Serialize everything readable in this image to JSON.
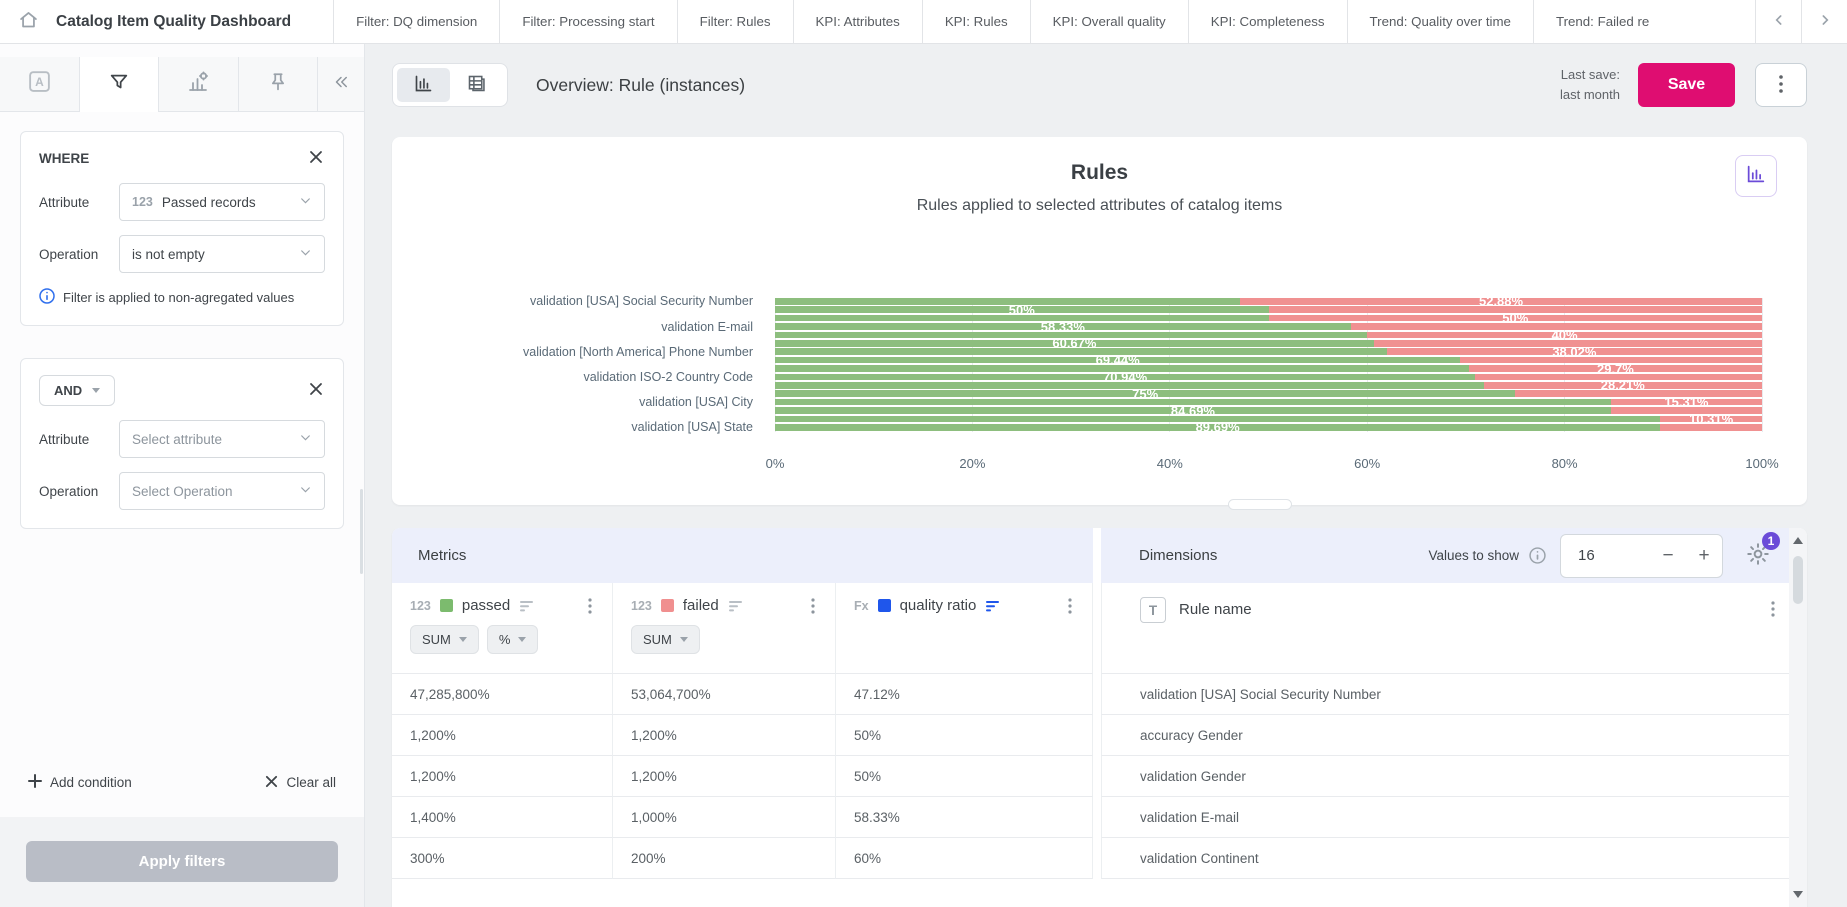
{
  "topbar": {
    "title": "Catalog Item Quality Dashboard",
    "tabs": [
      "Filter: DQ dimension",
      "Filter: Processing start",
      "Filter: Rules",
      "KPI: Attributes",
      "KPI: Rules",
      "KPI: Overall quality",
      "KPI: Completeness",
      "Trend: Quality over time",
      "Trend: Failed re"
    ]
  },
  "sidebar": {
    "active_tool": "filter-tool",
    "where_card": {
      "title": "WHERE",
      "attribute_label": "Attribute",
      "attribute_type": "123",
      "attribute_value": "Passed records",
      "operation_label": "Operation",
      "operation_value": "is not empty",
      "info": "Filter is applied to non-agregated values"
    },
    "and_card": {
      "operator": "AND",
      "attribute_label": "Attribute",
      "attribute_placeholder": "Select attribute",
      "operation_label": "Operation",
      "operation_placeholder": "Select Operation"
    },
    "add_condition": "Add condition",
    "clear_all": "Clear all",
    "apply_filters": "Apply filters"
  },
  "toolbar": {
    "view_title": "Overview: Rule (instances)",
    "last_save_label": "Last save:",
    "last_save_value": "last month",
    "save_label": "Save"
  },
  "chart_data": {
    "type": "bar",
    "orientation": "horizontal",
    "stacked": true,
    "title": "Rules",
    "subtitle": "Rules applied to selected attributes of catalog items",
    "x_ticks": [
      "0%",
      "20%",
      "40%",
      "60%",
      "80%",
      "100%"
    ],
    "x_range": [
      0,
      100
    ],
    "grid": true,
    "series": [
      {
        "name": "passed",
        "color": "#8dbe7e"
      },
      {
        "name": "failed",
        "color": "#f09191"
      }
    ],
    "bars": [
      {
        "axis_label": "validation [USA] Social Security Number",
        "passed_pct": 47.12,
        "failed_pct": 52.88,
        "data_label": "52.88%",
        "label_segment": "failed"
      },
      {
        "axis_label": "",
        "passed_pct": 50,
        "failed_pct": 50,
        "data_label": "50%",
        "label_segment": "passed"
      },
      {
        "axis_label": "",
        "passed_pct": 50,
        "failed_pct": 50,
        "data_label": "50%",
        "label_segment": "failed"
      },
      {
        "axis_label": "validation E-mail",
        "passed_pct": 58.33,
        "failed_pct": 41.67,
        "data_label": "58.33%",
        "label_segment": "passed"
      },
      {
        "axis_label": "",
        "passed_pct": 60,
        "failed_pct": 40,
        "data_label": "40%",
        "label_segment": "failed"
      },
      {
        "axis_label": "",
        "passed_pct": 60.67,
        "failed_pct": 39.33,
        "data_label": "60.67%",
        "label_segment": "passed"
      },
      {
        "axis_label": "validation [North America] Phone Number",
        "passed_pct": 61.98,
        "failed_pct": 38.02,
        "data_label": "38.02%",
        "label_segment": "failed"
      },
      {
        "axis_label": "",
        "passed_pct": 69.44,
        "failed_pct": 30.56,
        "data_label": "69.44%",
        "label_segment": "passed"
      },
      {
        "axis_label": "",
        "passed_pct": 70.3,
        "failed_pct": 29.7,
        "data_label": "29.7%",
        "label_segment": "failed"
      },
      {
        "axis_label": "validation ISO-2 Country Code",
        "passed_pct": 70.94,
        "failed_pct": 29.06,
        "data_label": "70.94%",
        "label_segment": "passed"
      },
      {
        "axis_label": "",
        "passed_pct": 71.79,
        "failed_pct": 28.21,
        "data_label": "28.21%",
        "label_segment": "failed"
      },
      {
        "axis_label": "",
        "passed_pct": 75,
        "failed_pct": 25,
        "data_label": "75%",
        "label_segment": "passed"
      },
      {
        "axis_label": "validation [USA] City",
        "passed_pct": 84.69,
        "failed_pct": 15.31,
        "data_label": "15.31%",
        "label_segment": "failed"
      },
      {
        "axis_label": "",
        "passed_pct": 84.69,
        "failed_pct": 15.31,
        "data_label": "84.69%",
        "label_segment": "passed"
      },
      {
        "axis_label": "",
        "passed_pct": 89.69,
        "failed_pct": 10.31,
        "data_label": "10.31%",
        "label_segment": "failed"
      },
      {
        "axis_label": "validation [USA] State",
        "passed_pct": 89.69,
        "failed_pct": 10.31,
        "data_label": "89.69%",
        "label_segment": "passed"
      }
    ]
  },
  "table": {
    "metrics_header": "Metrics",
    "dimensions_header": "Dimensions",
    "values_to_show_label": "Values to show",
    "values_to_show": "16",
    "settings_badge": "1",
    "columns": [
      {
        "type": "123",
        "swatch": "#7cbb6e",
        "name": "passed",
        "aggregations": [
          "SUM",
          "%"
        ],
        "sorted": false
      },
      {
        "type": "123",
        "swatch": "#f08f8f",
        "name": "failed",
        "aggregations": [
          "SUM"
        ],
        "sorted": false
      },
      {
        "type": "Fx",
        "swatch": "#1f56eb",
        "name": "quality ratio",
        "aggregations": [],
        "sorted": true
      }
    ],
    "dimension_column": {
      "type": "T",
      "name": "Rule name"
    },
    "rows": [
      {
        "passed": "47,285,800%",
        "failed": "53,064,700%",
        "quality_ratio": "47.12%",
        "rule_name": "validation [USA] Social Security Number"
      },
      {
        "passed": "1,200%",
        "failed": "1,200%",
        "quality_ratio": "50%",
        "rule_name": "accuracy Gender"
      },
      {
        "passed": "1,200%",
        "failed": "1,200%",
        "quality_ratio": "50%",
        "rule_name": "validation Gender"
      },
      {
        "passed": "1,400%",
        "failed": "1,000%",
        "quality_ratio": "58.33%",
        "rule_name": "validation E-mail"
      },
      {
        "passed": "300%",
        "failed": "200%",
        "quality_ratio": "60%",
        "rule_name": "validation Continent"
      }
    ]
  },
  "colors": {
    "accent_pink": "#df0d71",
    "accent_purple": "#6b4bd8",
    "accent_blue": "#1f56eb",
    "passed_green": "#8dbe7e",
    "failed_red": "#f09191",
    "header_lavender": "#eceffb",
    "sort_icon_gray": "#b9bfc5"
  }
}
